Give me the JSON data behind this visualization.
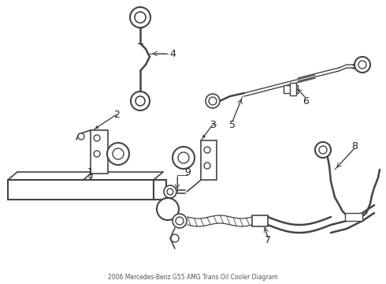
{
  "title": "2006 Mercedes-Benz G55 AMG Trans Oil Cooler Diagram",
  "bg_color": "#ffffff",
  "line_color": "#444444",
  "text_color": "#222222",
  "fig_width": 4.9,
  "fig_height": 3.6,
  "dpi": 100
}
